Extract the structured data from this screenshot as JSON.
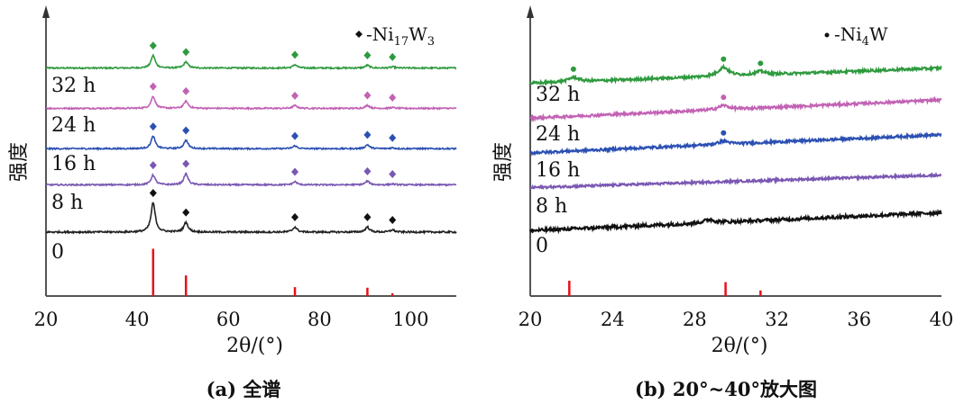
{
  "chart_data": [
    {
      "type": "line",
      "panel": "a",
      "caption": "(a) 全谱",
      "xlabel": "2θ/(°)",
      "ylabel": "强度",
      "xlim": [
        20,
        110
      ],
      "ylim": [
        0,
        100
      ],
      "xticks": [
        20,
        40,
        60,
        80,
        100
      ],
      "xtick_labels": [
        "20",
        "40",
        "60",
        "80",
        "100"
      ],
      "legend": {
        "marker": "diamond",
        "prefix": "-Ni",
        "sub1": "17",
        "mid": "W",
        "sub2": "3"
      },
      "marker_shape": "diamond",
      "reference": {
        "name": "0",
        "label": "0",
        "color": "#e8101a",
        "sticks": [
          [
            43.5,
            17
          ],
          [
            50.7,
            7.4
          ],
          [
            74.6,
            3.2
          ],
          [
            90.5,
            3
          ],
          [
            96,
            1
          ]
        ]
      },
      "series": [
        {
          "name": "32 h",
          "label": "32 h",
          "color": "#2e9a3e",
          "baseline": [
            82,
            82
          ],
          "noise": 0.25,
          "peaks": [
            [
              43.5,
              4.5
            ],
            [
              50.7,
              2.2
            ],
            [
              74.6,
              1.2
            ],
            [
              90.5,
              1.0
            ],
            [
              96,
              0.4
            ]
          ]
        },
        {
          "name": "24 h",
          "label": "24 h",
          "color": "#c262b4",
          "baseline": [
            67.5,
            67.5
          ],
          "noise": 0.25,
          "peaks": [
            [
              43.5,
              4.3
            ],
            [
              50.7,
              2.6
            ],
            [
              74.6,
              1.0
            ],
            [
              90.5,
              1.1
            ],
            [
              96,
              0.3
            ]
          ]
        },
        {
          "name": "16 h",
          "label": "16 h",
          "color": "#2b50b3",
          "baseline": [
            53,
            53
          ],
          "noise": 0.25,
          "peaks": [
            [
              43.5,
              4.4
            ],
            [
              50.7,
              3.0
            ],
            [
              74.6,
              1.0
            ],
            [
              90.5,
              1.4
            ],
            [
              96,
              0.3
            ]
          ]
        },
        {
          "name": "8 h",
          "label": "8 h",
          "color": "#7a57b3",
          "baseline": [
            40,
            40
          ],
          "noise": 0.25,
          "peaks": [
            [
              43.5,
              3.5
            ],
            [
              50.7,
              4.0
            ],
            [
              74.6,
              1.1
            ],
            [
              90.5,
              1.3
            ],
            [
              96,
              0.3
            ]
          ]
        },
        {
          "name": "0",
          "label": "0",
          "color": "#222222",
          "baseline": [
            23,
            23
          ],
          "noise": 0.3,
          "peaks": [
            [
              43.5,
              10.5
            ],
            [
              50.7,
              3.5
            ],
            [
              74.6,
              1.8
            ],
            [
              90.5,
              1.8
            ],
            [
              96,
              0.8
            ]
          ]
        }
      ]
    },
    {
      "type": "line",
      "panel": "b",
      "caption": "(b) 20°~40°放大图",
      "xlabel": "2θ/(°)",
      "ylabel": "强度",
      "xlim": [
        20,
        40
      ],
      "ylim": [
        0,
        100
      ],
      "xticks": [
        20,
        24,
        28,
        32,
        36,
        40
      ],
      "xtick_labels": [
        "20",
        "24",
        "28",
        "32",
        "36",
        "40"
      ],
      "legend": {
        "marker": "dot",
        "prefix": "-Ni",
        "sub1": "4",
        "mid": "W",
        "sub2": ""
      },
      "marker_shape": "dot",
      "reference": {
        "name": "0",
        "label": "0",
        "color": "#e8101a",
        "sticks": [
          [
            21.9,
            5.5
          ],
          [
            29.5,
            5
          ],
          [
            31.2,
            2
          ]
        ]
      },
      "series": [
        {
          "name": "32 h",
          "label": "32 h",
          "color": "#2e9a3e",
          "baseline": [
            76.5,
            82
          ],
          "noise": 0.45,
          "peaks": [
            [
              22.1,
              1.6
            ],
            [
              29.4,
              3.2
            ],
            [
              31.2,
              1.2
            ]
          ],
          "marked": [
            22.1,
            29.4,
            31.2
          ]
        },
        {
          "name": "24 h",
          "label": "24 h",
          "color": "#c262b4",
          "baseline": [
            64,
            70.5
          ],
          "noise": 0.45,
          "peaks": [
            [
              29.4,
              1.5
            ]
          ],
          "marked": [
            29.4
          ]
        },
        {
          "name": "16 h",
          "label": "16 h",
          "color": "#2b50b3",
          "baseline": [
            51.5,
            58
          ],
          "noise": 0.45,
          "peaks": [
            [
              29.4,
              1.2
            ]
          ],
          "marked": [
            29.4
          ]
        },
        {
          "name": "8 h",
          "label": "8 h",
          "color": "#7a57b3",
          "baseline": [
            39,
            43.5
          ],
          "noise": 0.4,
          "peaks": [],
          "marked": []
        },
        {
          "name": "0",
          "label": "0",
          "color": "#111111",
          "baseline": [
            23.5,
            30
          ],
          "noise": 0.6,
          "peaks": [
            [
              28.7,
              1.2
            ]
          ],
          "marked": []
        }
      ]
    }
  ]
}
